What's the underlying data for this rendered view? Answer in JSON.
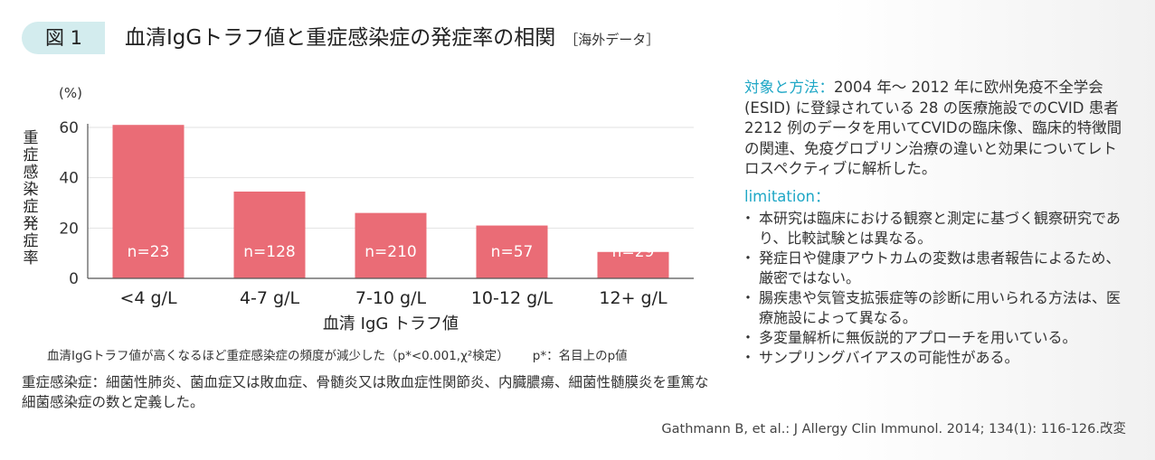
{
  "header": {
    "figure_label": "図 1",
    "title": "血清IgGトラフ値と重症感染症の発症率の相関",
    "tag": "［海外データ］"
  },
  "chart_data": {
    "type": "bar",
    "categories": [
      "<4 g/L",
      "4-7 g/L",
      "7-10 g/L",
      "10-12 g/L",
      "12+ g/L"
    ],
    "values": [
      61,
      34.5,
      26,
      21,
      10.5
    ],
    "data_labels": [
      "n=23",
      "n=128",
      "n=210",
      "n=57",
      "n=29"
    ],
    "ylim": [
      0,
      60
    ],
    "yticks": [
      0,
      20,
      40,
      60
    ],
    "yunit": "(%)",
    "ylabel": "重症感染症発症率",
    "xlabel": "血清 IgG トラフ値",
    "bar_color": "#ea6c76",
    "grid": true
  },
  "notes": {
    "chart_caption": "血清IgGトラフ値が高くなるほど重症感染症の頻度が減少した（p*<0.001,χ²検定）",
    "pvalue_note": "p*：名目上のp値",
    "definition": "重症感染症：細菌性肺炎、菌血症又は敗血症、骨髄炎又は敗血症性関節炎、内臓膿瘍、細菌性髄膜炎を重篤な細菌感染症の数と定義した。"
  },
  "method": {
    "heading": "対象と方法：",
    "text": "2004 年～ 2012 年に欧州免疫不全学会 (ESID) に登録されている 28 の医療施設でのCVID 患者 2212 例のデータを用いてCVIDの臨床像、臨床的特徴間の関連、免疫グロブリン治療の違いと効果についてレトロスペクティブに解析した。"
  },
  "limitation": {
    "heading": "limitation：",
    "items": [
      "本研究は臨床における観察と測定に基づく観察研究であり、比較試験とは異なる。",
      "発症日や健康アウトカムの変数は患者報告によるため、厳密ではない。",
      "腸疾患や気管支拡張症等の診断に用いられる方法は、医療施設によって異なる。",
      "多変量解析に無仮説的アプローチを用いている。",
      "サンプリングバイアスの可能性がある。"
    ]
  },
  "citation": "Gathmann B, et al.: J Allergy Clin Immunol. 2014; 134(1): 116-126.改変",
  "colors": {
    "accent": "#1fa7c6",
    "label_bg": "#d3ecee"
  }
}
